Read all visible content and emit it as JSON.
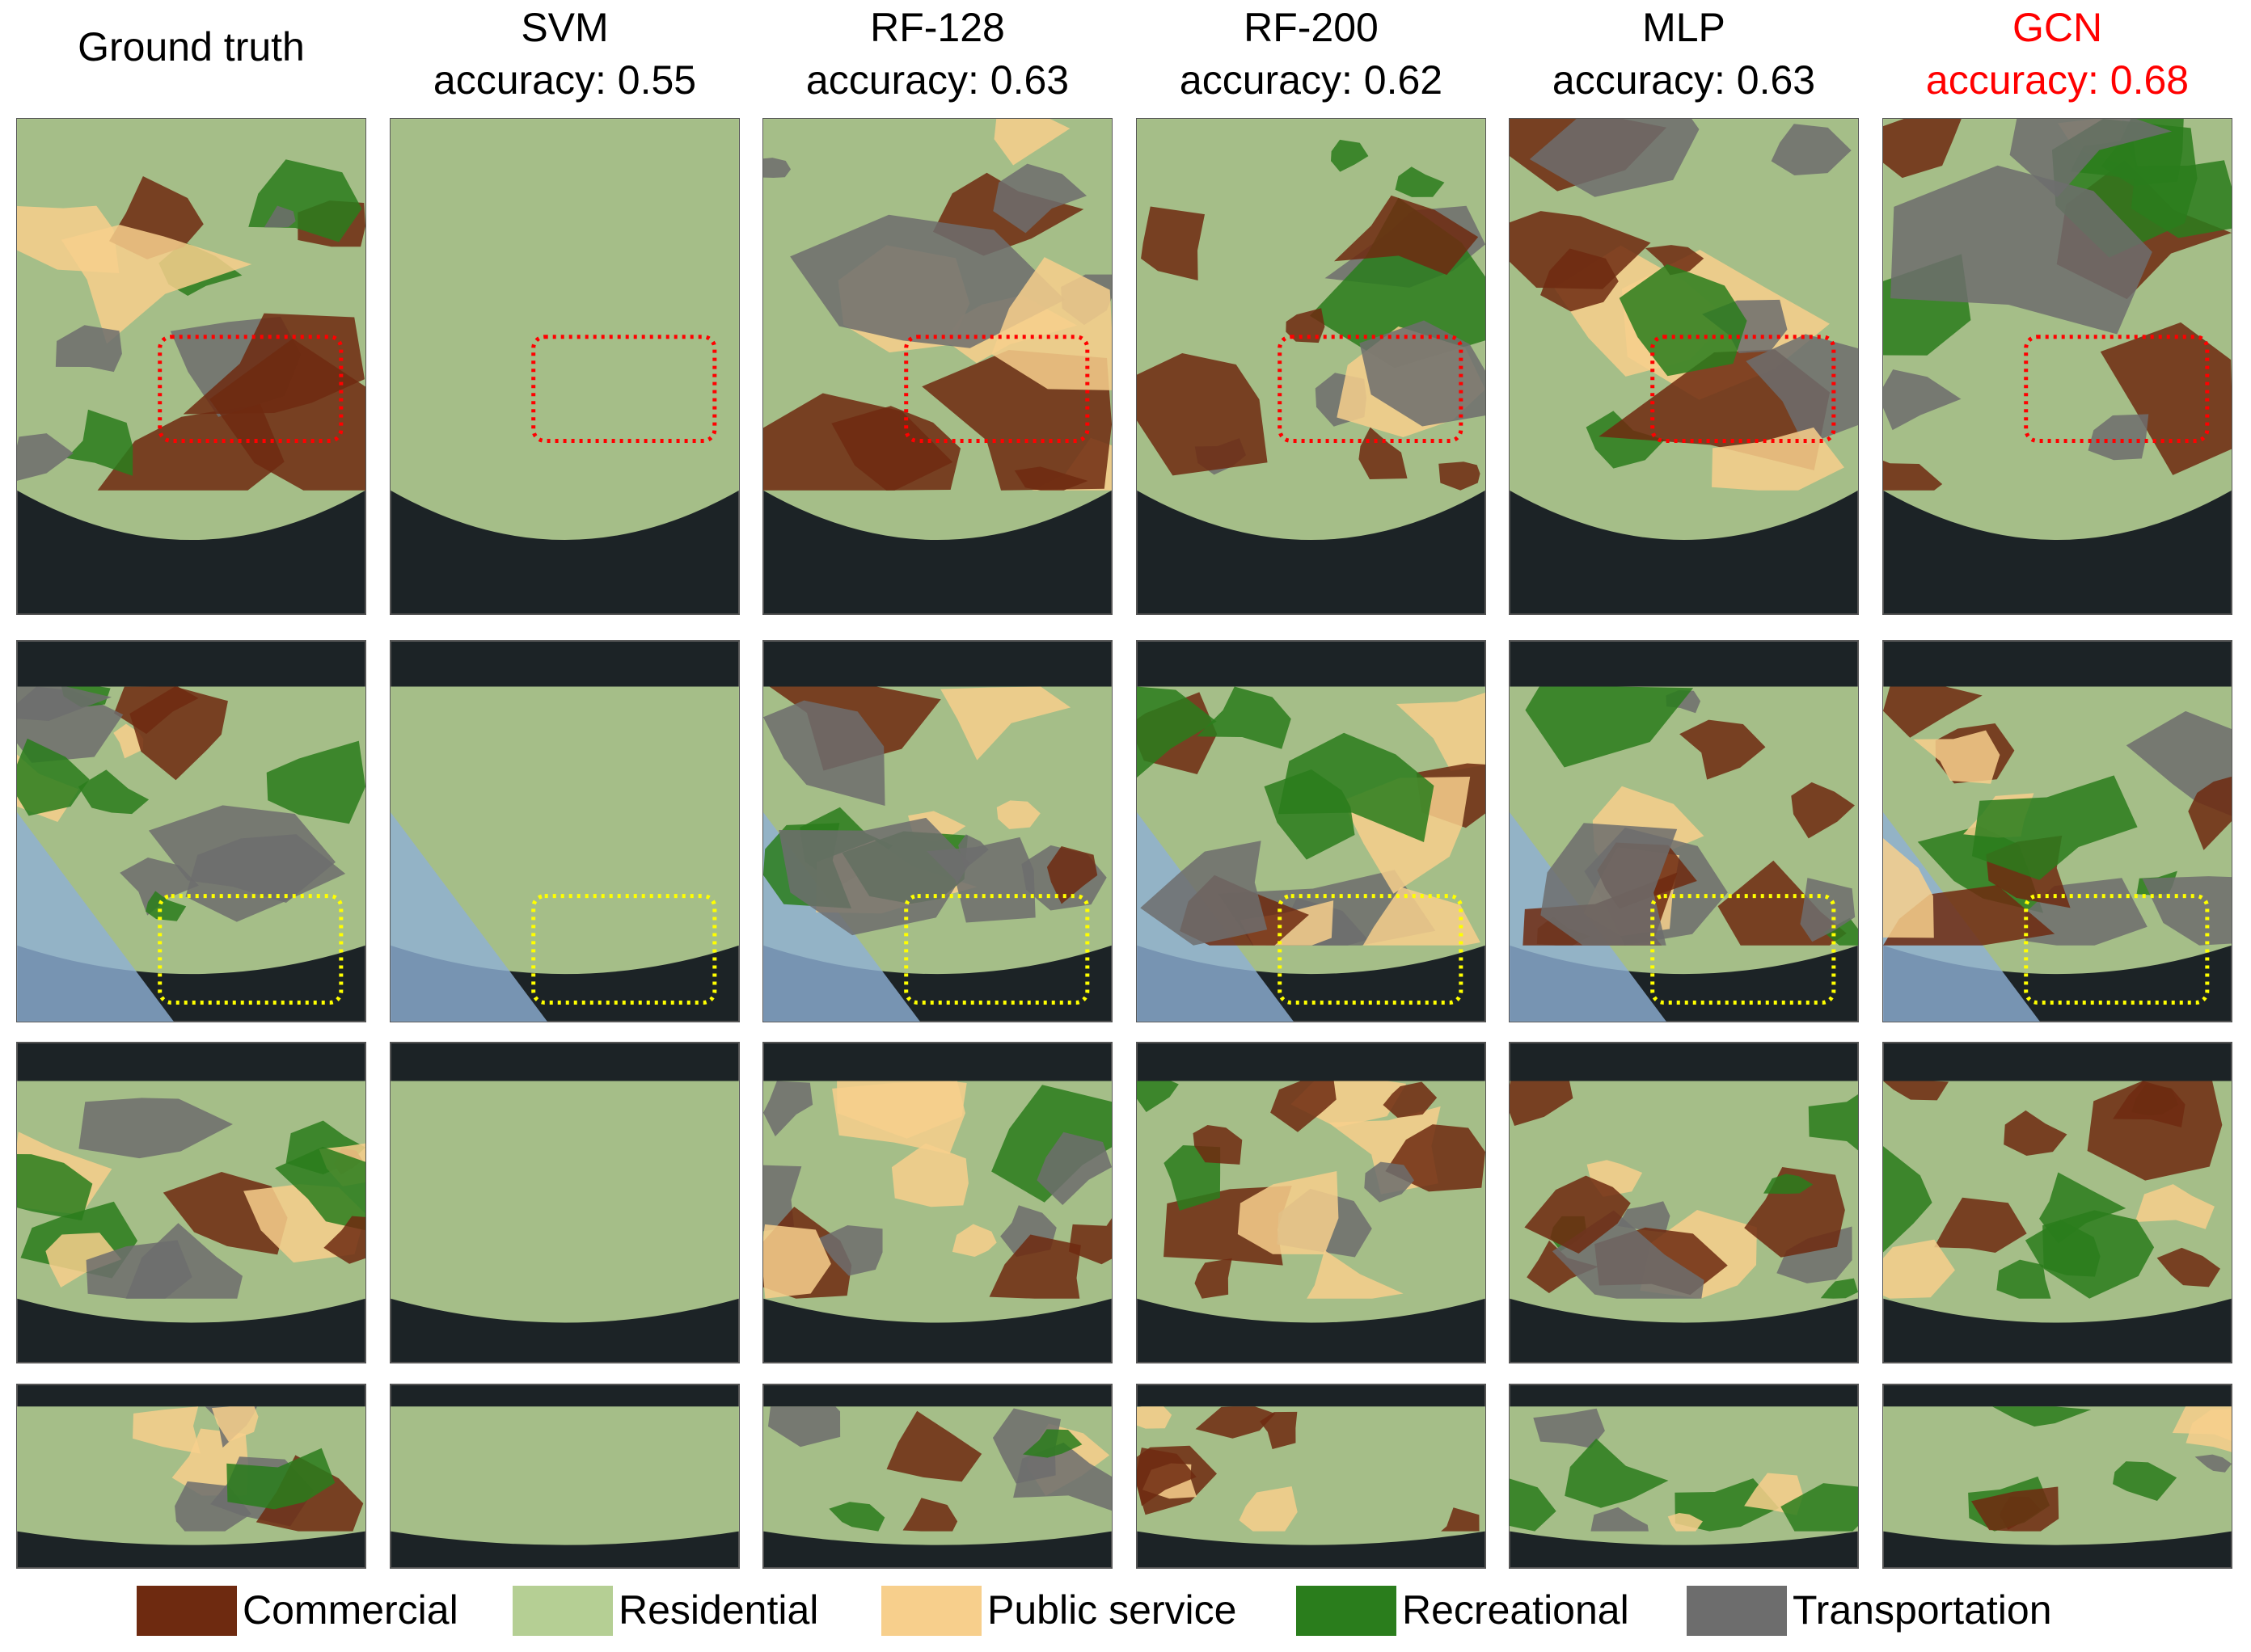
{
  "columns": [
    {
      "title": "Ground truth",
      "color": "#000000"
    },
    {
      "title": "SVM",
      "subtitle": "accuracy: 0.55",
      "color": "#000000"
    },
    {
      "title": "RF-128",
      "subtitle": "accuracy: 0.63",
      "color": "#000000"
    },
    {
      "title": "RF-200",
      "subtitle": "accuracy: 0.62",
      "color": "#000000"
    },
    {
      "title": "MLP",
      "subtitle": "accuracy: 0.63",
      "color": "#000000"
    },
    {
      "title": "GCN",
      "subtitle": "accuracy: 0.68",
      "color": "#ff0000"
    }
  ],
  "legend": [
    {
      "label": "Commercial",
      "color": "#6e2a10"
    },
    {
      "label": "Residential",
      "color": "#b5cf94"
    },
    {
      "label": "Public service",
      "color": "#f7cf8c"
    },
    {
      "label": "Recreational",
      "color": "#2a7d1c"
    },
    {
      "label": "Transportation",
      "color": "#6d6d6d"
    }
  ]
}
